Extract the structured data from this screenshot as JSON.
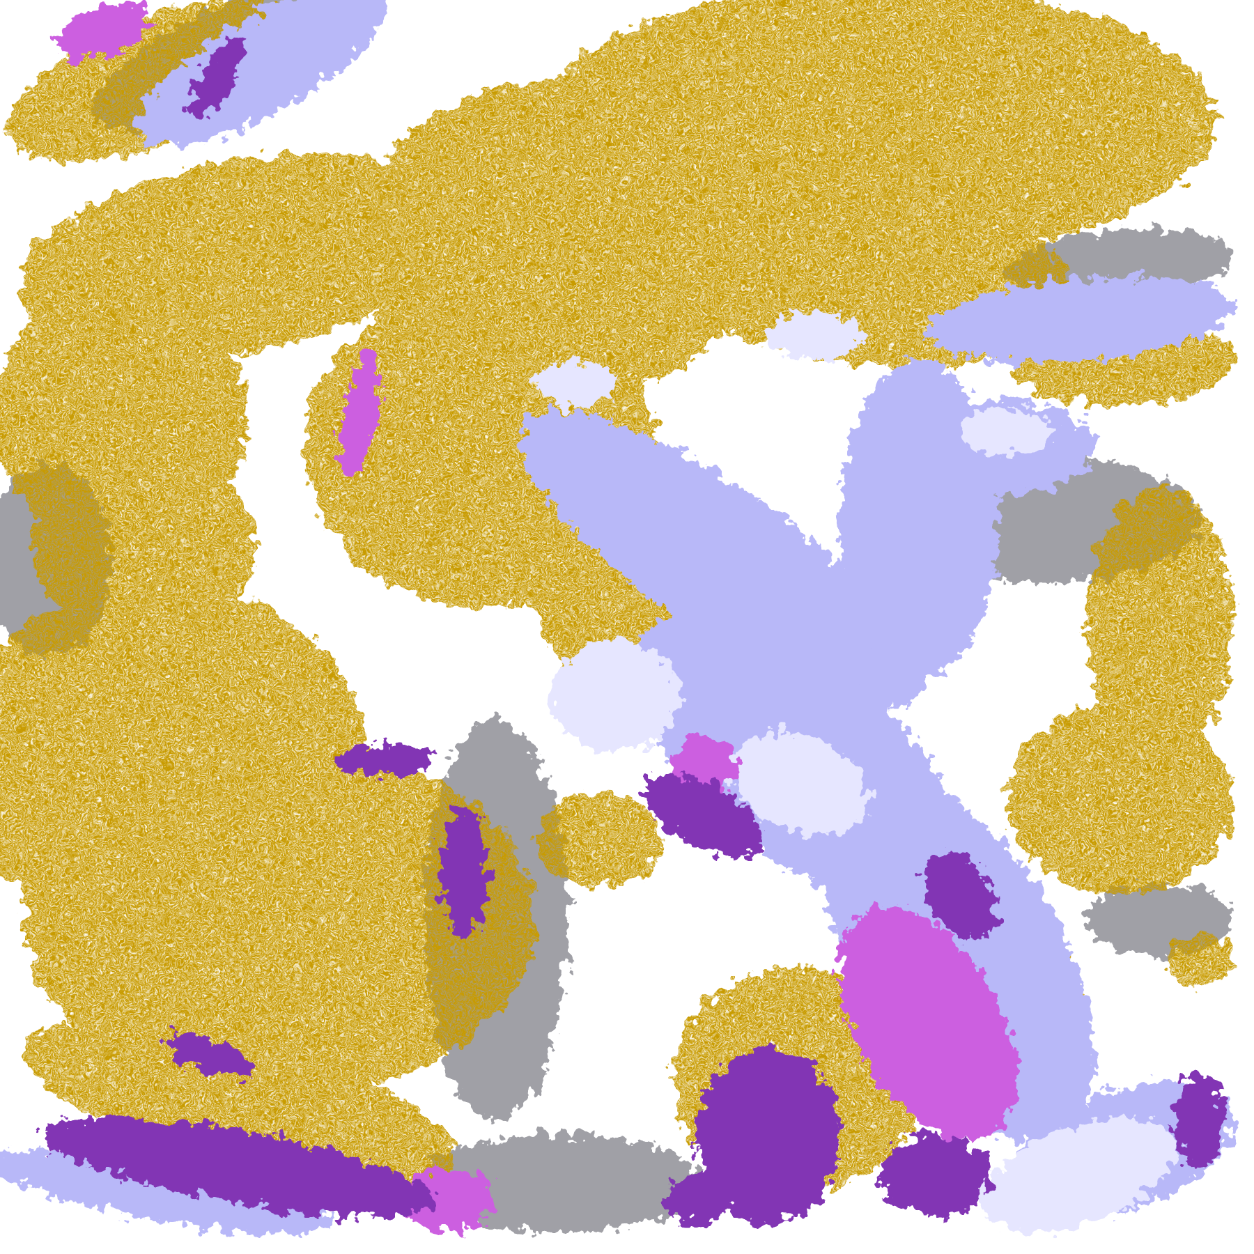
{
  "image": {
    "kind": "satellite cloud-type classification composite",
    "background_color": "#ffffff",
    "palette": {
      "gold": "#c89b00",
      "purple": "#8236b4",
      "magenta": "#cc5ee0",
      "lavender": "#b8b8f8",
      "pale_lavender": "#e6e6ff",
      "gray": "#a0a0a6"
    }
  }
}
